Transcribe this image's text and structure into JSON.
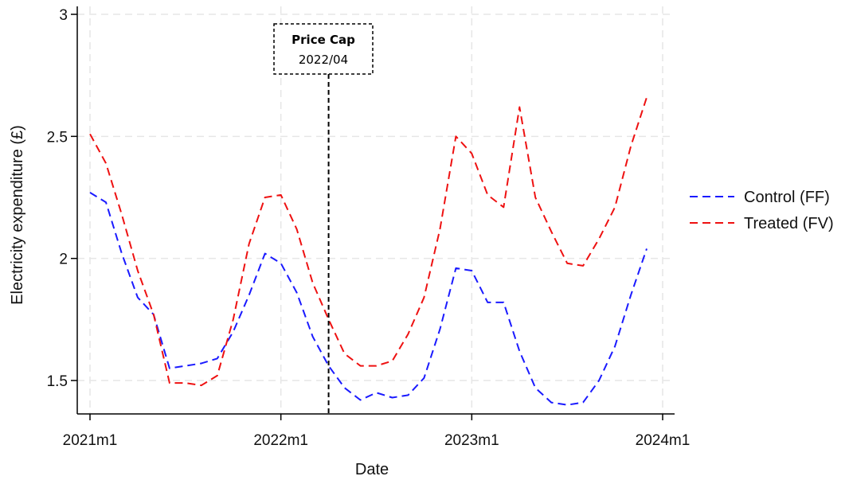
{
  "chart_data": {
    "type": "line",
    "title": "",
    "xlabel": "Date",
    "ylabel": "Electricity expenditure (£)",
    "xlim": [
      0,
      38.5
    ],
    "ylim": [
      1.39,
      3.05
    ],
    "x_ticks": [
      {
        "x": 0,
        "label": "2021m1"
      },
      {
        "x": 12,
        "label": "2022m1"
      },
      {
        "x": 24,
        "label": "2023m1"
      },
      {
        "x": 36,
        "label": "2024m1"
      }
    ],
    "y_ticks": [
      {
        "y": 1.5,
        "label": "1.5"
      },
      {
        "y": 2.0,
        "label": "2"
      },
      {
        "y": 2.5,
        "label": "2.5"
      },
      {
        "y": 3.0,
        "label": "3"
      }
    ],
    "grid": true,
    "legend_position": "right",
    "annotation": {
      "x": 15,
      "title": "Price Cap",
      "subtitle": "2022/04"
    },
    "series": [
      {
        "name": "Control (FF)",
        "color": "#1a1aff",
        "dash": "dashed",
        "values": [
          2.27,
          2.23,
          2.02,
          1.84,
          1.77,
          1.55,
          1.56,
          1.57,
          1.59,
          1.7,
          1.85,
          2.02,
          1.98,
          1.86,
          1.68,
          1.56,
          1.47,
          1.42,
          1.45,
          1.43,
          1.44,
          1.51,
          1.71,
          1.96,
          1.95,
          1.82,
          1.82,
          1.62,
          1.47,
          1.41,
          1.4,
          1.41,
          1.5,
          1.64,
          1.85,
          2.04
        ]
      },
      {
        "name": "Treated (FV)",
        "color": "#ee1111",
        "dash": "dashed",
        "values": [
          2.51,
          2.39,
          2.18,
          1.95,
          1.77,
          1.49,
          1.49,
          1.48,
          1.52,
          1.75,
          2.06,
          2.25,
          2.26,
          2.12,
          1.9,
          1.75,
          1.61,
          1.56,
          1.56,
          1.58,
          1.69,
          1.84,
          2.12,
          2.5,
          2.43,
          2.26,
          2.21,
          2.62,
          2.25,
          2.11,
          1.98,
          1.97,
          2.08,
          2.21,
          2.46,
          2.66
        ]
      }
    ]
  }
}
